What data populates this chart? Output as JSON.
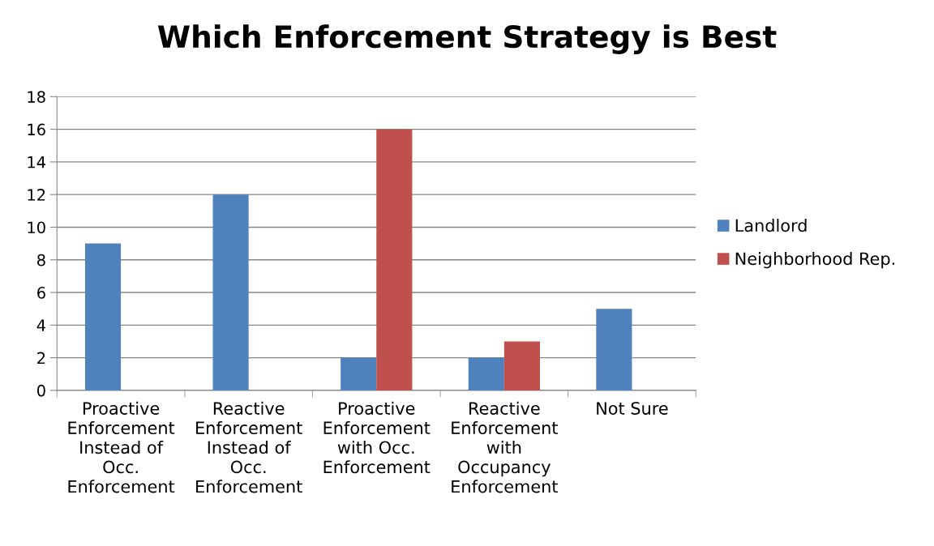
{
  "chart_data": {
    "type": "bar",
    "title": "Which Enforcement Strategy is Best",
    "categories": [
      "Proactive\nEnforcement\nInstead of\nOcc.\nEnforcement",
      "Reactive\nEnforcement\nInstead of\nOcc.\nEnforcement",
      "Proactive\nEnforcement\nwith Occ.\nEnforcement",
      "Reactive\nEnforcement\nwith\nOccupancy\nEnforcement",
      "Not Sure"
    ],
    "series": [
      {
        "name": "Landlord",
        "color": "#4f81bd",
        "values": [
          9,
          12,
          2,
          2,
          5
        ]
      },
      {
        "name": "Neighborhood Rep.",
        "color": "#c0504d",
        "values": [
          0,
          0,
          16,
          3,
          0
        ]
      }
    ],
    "ylim": [
      0,
      18
    ],
    "yticks": [
      0,
      2,
      4,
      6,
      8,
      10,
      12,
      14,
      16,
      18
    ],
    "grid": "y",
    "legend": "right"
  }
}
